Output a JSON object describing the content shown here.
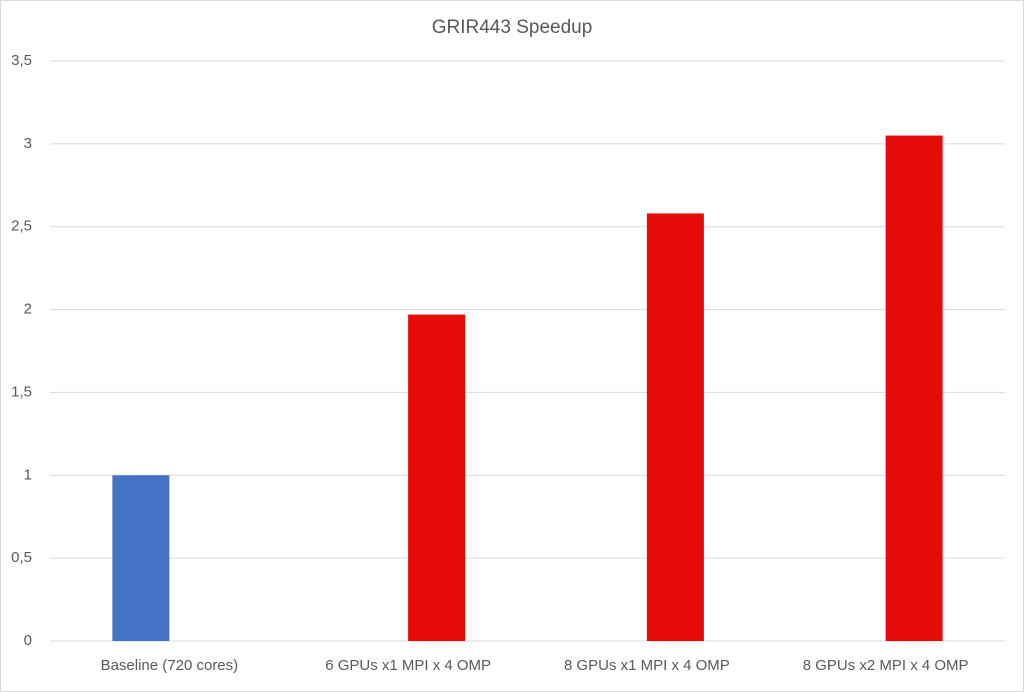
{
  "chart_data": {
    "type": "bar",
    "title": "GRIR443 Speedup",
    "categories": [
      "Baseline (720 cores)",
      "6 GPUs x1 MPI x 4 OMP",
      "8 GPUs x1 MPI x 4 OMP",
      "8 GPUs x2 MPI x 4 OMP"
    ],
    "series": [
      {
        "color": "#4472c4",
        "values": [
          1,
          null,
          null,
          null
        ]
      },
      {
        "color": "#e60b0b",
        "values": [
          null,
          1.97,
          2.58,
          3.05
        ]
      }
    ],
    "ylim": [
      0,
      3.5
    ],
    "yticks": [
      0,
      {
        "value": 0.5,
        "label": "0,5"
      },
      1,
      {
        "value": 1.5,
        "label": "1,5"
      },
      2,
      {
        "value": 2.5,
        "label": "2,5"
      },
      3,
      {
        "value": 3.5,
        "label": "3,5"
      }
    ],
    "grid": true
  }
}
